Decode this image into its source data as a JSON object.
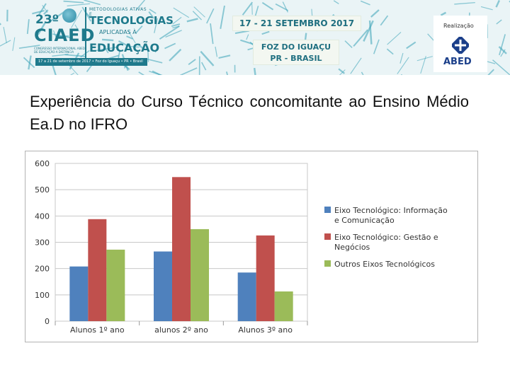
{
  "banner": {
    "logo_number": "23º",
    "logo_name": "CIAED",
    "logo_small": "CONGRESSO INTERNACIONAL ABED DE EDUCAÇÃO A DISTÂNCIA",
    "logo_line1": "METODOLOGIAS ATIVAS E",
    "logo_line2": "TECNOLOGIAS",
    "logo_line3": "APLICADAS À",
    "logo_line4": "EDUCAÇÃO",
    "logo_strip": "17 a 21 de setembro de 2017 • Foz do Iguaçu • PR • Brasil",
    "dates": "17 - 21 SETEMBRO 2017",
    "place_line1": "FOZ DO IGUAÇU",
    "place_line2": "PR - BRASIL",
    "realizacao": "Realização",
    "abed": "ABED",
    "colors": {
      "background": "#eaf4f6",
      "pattern": "#3ba3b8",
      "text": "#1f7a8c"
    }
  },
  "slide": {
    "title": "Experiência do Curso Técnico concomitante ao Ensino Médio Ea.D no IFRO"
  },
  "chart_data": {
    "type": "bar",
    "categories": [
      "Alunos 1º ano",
      "alunos 2º ano",
      "Alunos 3º ano"
    ],
    "series": [
      {
        "name": "Eixo Tecnológico: Informação e Comunicação",
        "values": [
          208,
          265,
          185
        ],
        "color": "#4f81bd"
      },
      {
        "name": "Eixo Tecnológico: Gestão e Negócios",
        "values": [
          388,
          548,
          326
        ],
        "color": "#c0504d"
      },
      {
        "name": "Outros Eixos Tecnológicos",
        "values": [
          272,
          350,
          113
        ],
        "color": "#9bbb59"
      }
    ],
    "title": "",
    "xlabel": "",
    "ylabel": "",
    "ylim": [
      0,
      600
    ],
    "yticks": [
      0,
      100,
      200,
      300,
      400,
      500,
      600
    ],
    "grid": true,
    "legend": "right"
  }
}
